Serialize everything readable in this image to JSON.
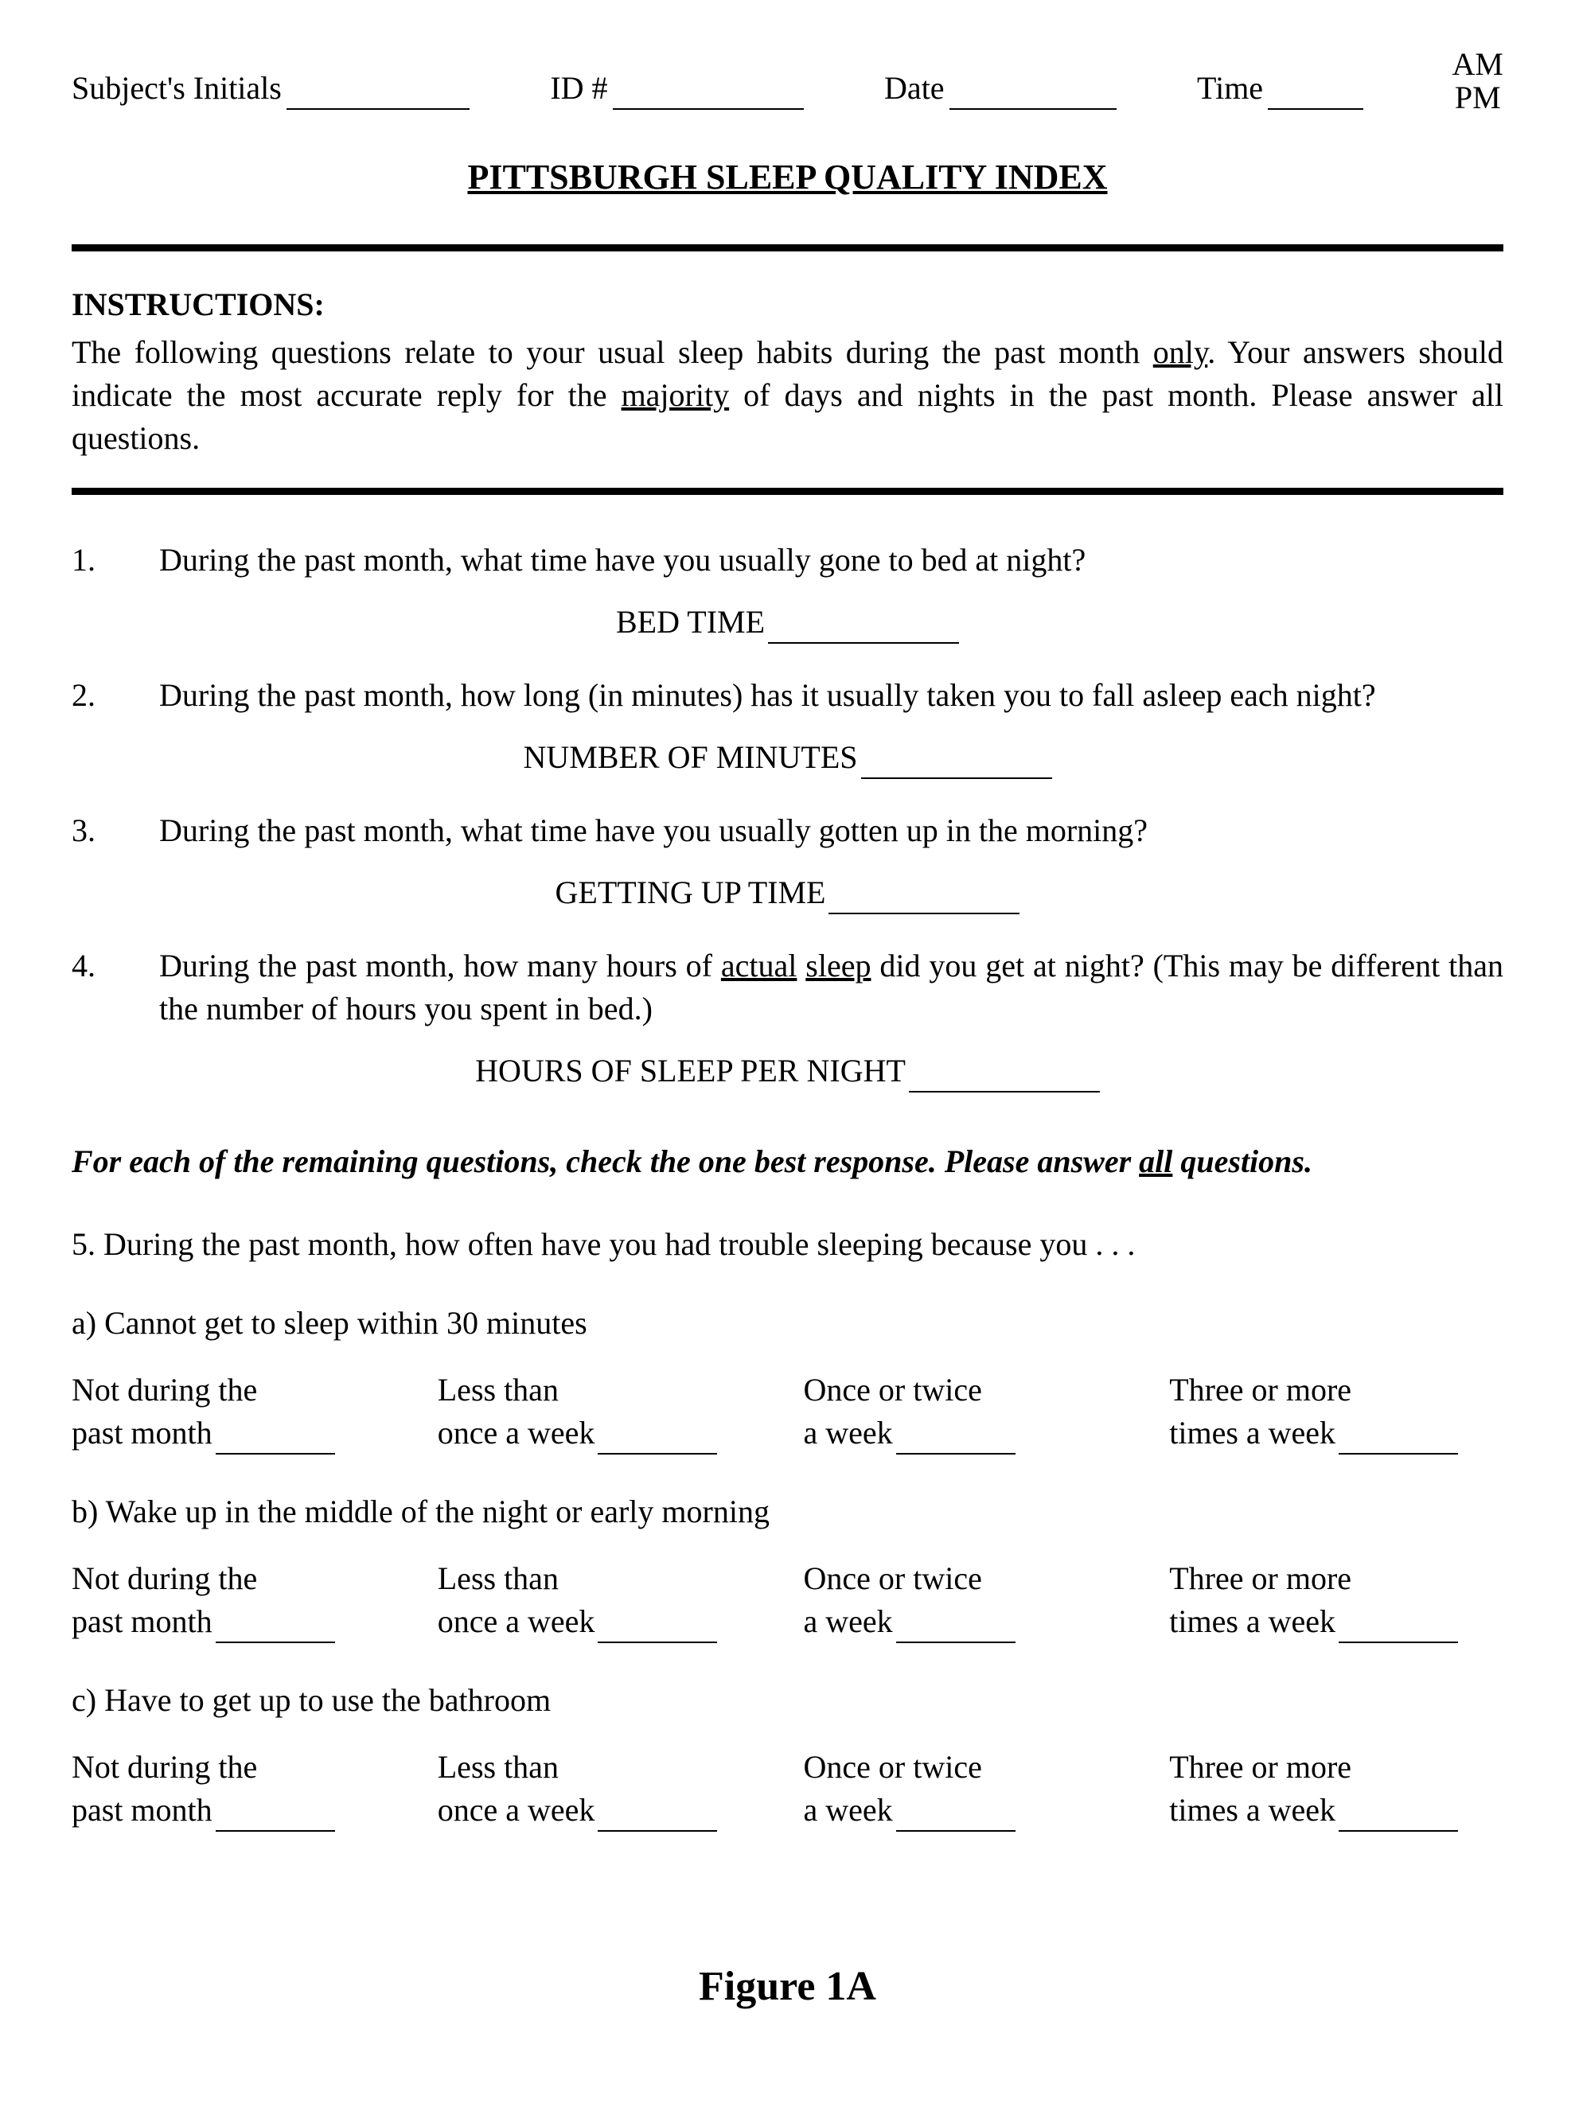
{
  "header": {
    "initials_label": "Subject's Initials",
    "id_label": "ID #",
    "date_label": "Date",
    "time_label": "Time",
    "am": "AM",
    "pm": "PM"
  },
  "title": "PITTSBURGH SLEEP QUALITY INDEX",
  "instructions": {
    "heading": "INSTRUCTIONS:",
    "p1a": "The following questions relate to your usual sleep habits during the past month ",
    "p1_only": "only",
    "p1b": ".  Your answers should indicate the most accurate reply for the ",
    "p1_majority": "majority",
    "p1c": " of days and nights in the past month. Please answer all questions."
  },
  "q1": {
    "num": "1.",
    "text": "During the past month, what time have you usually gone to bed at night?",
    "fill_label": "BED TIME"
  },
  "q2": {
    "num": "2.",
    "text": "During the past month, how long (in minutes) has it usually taken you to fall asleep each night?",
    "fill_label": "NUMBER OF MINUTES"
  },
  "q3": {
    "num": "3.",
    "text": "During the past month, what time have you usually gotten up in the morning?",
    "fill_label": "GETTING UP TIME"
  },
  "q4": {
    "num": "4.",
    "text_a": "During the past month, how many hours of ",
    "u1": "actual",
    "sp": " ",
    "u2": "sleep",
    "text_b": " did you get at night?  (This may be different than the number of hours you spent in bed.)",
    "fill_label": "HOURS OF SLEEP PER NIGHT"
  },
  "remaining": {
    "a": "For each of the remaining questions, check the one best response.  Please answer ",
    "all": "all",
    "b": " questions."
  },
  "q5_lead": "5.  During the past month, how often have you had trouble sleeping because you . . .",
  "q5a": "a)  Cannot get to sleep within 30 minutes",
  "q5b": "b)  Wake up in the middle of the night or early morning",
  "q5c": "c)  Have to get up to use the bathroom",
  "freq": {
    "c1_top": "Not during the",
    "c1_bot": "past month",
    "c2_top": "Less than",
    "c2_bot": "once a week",
    "c3_top": "Once or twice",
    "c3_bot": "a week",
    "c4_top": "Three or more",
    "c4_bot": "times a week"
  },
  "figure": "Figure 1A",
  "blanks": {
    "hdr_initials_w": 230,
    "hdr_id_w": 240,
    "hdr_date_w": 210,
    "hdr_time_w": 120,
    "fill_w": 240,
    "freq_w": 150
  }
}
